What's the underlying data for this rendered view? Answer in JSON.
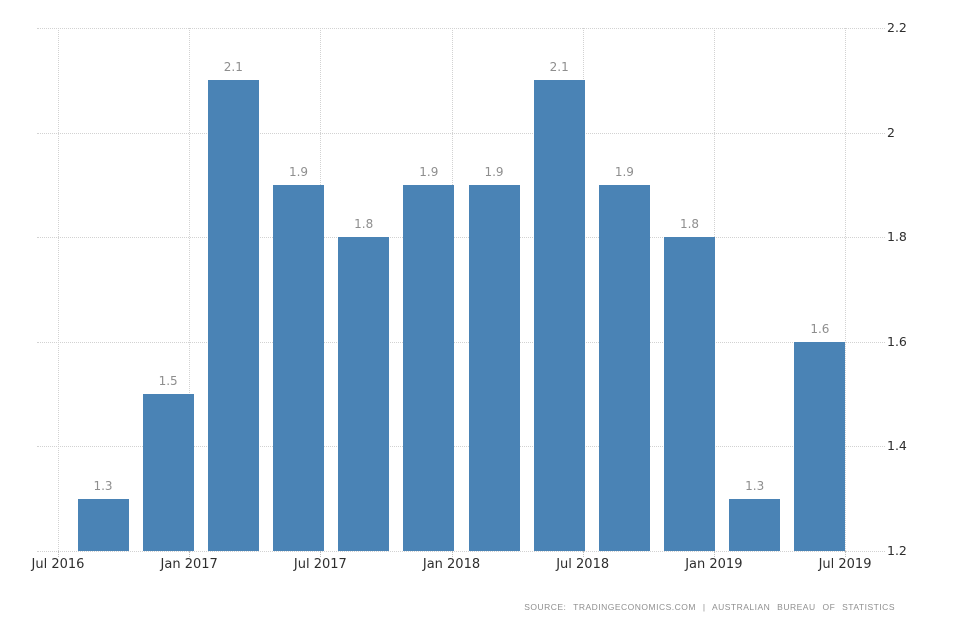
{
  "chart": {
    "source_line": "SOURCE: TRADINGECONOMICS.COM | AUSTRALIAN BUREAU OF STATISTICS"
  },
  "chart_data": {
    "type": "bar",
    "title": "",
    "categories": [
      "2016-Q3",
      "2016-Q4",
      "2017-Q1",
      "2017-Q2",
      "2017-Q3",
      "2017-Q4",
      "2018-Q1",
      "2018-Q2",
      "2018-Q3",
      "2018-Q4",
      "2019-Q1",
      "2019-Q2"
    ],
    "values": [
      1.3,
      1.5,
      2.1,
      1.9,
      1.8,
      1.9,
      1.9,
      2.1,
      1.9,
      1.8,
      1.3,
      1.6
    ],
    "bar_labels": [
      "1.3",
      "1.5",
      "2.1",
      "1.9",
      "1.8",
      "1.9",
      "1.9",
      "2.1",
      "1.9",
      "1.8",
      "1.3",
      "1.6"
    ],
    "x_tick_labels": [
      "Jul 2016",
      "Jan 2017",
      "Jul 2017",
      "Jan 2018",
      "Jul 2018",
      "Jan 2019",
      "Jul 2019"
    ],
    "y_tick_labels": [
      "2.2",
      "2",
      "1.8",
      "1.6",
      "1.4",
      "1.2"
    ],
    "y_tick_values": [
      2.2,
      2.0,
      1.8,
      1.6,
      1.4,
      1.2
    ],
    "ylim": [
      1.2,
      2.2
    ],
    "xlabel": "",
    "ylabel": "",
    "grid": true,
    "legend": "none",
    "y_axis_side": "right",
    "colors": {
      "bar": "#4a83b5",
      "gridline": "#d2d2d2",
      "bar_value_label": "#8e8e8e",
      "axis_label": "#2e2e2e",
      "source_text": "#8f8f8f",
      "background": "#ffffff"
    }
  }
}
